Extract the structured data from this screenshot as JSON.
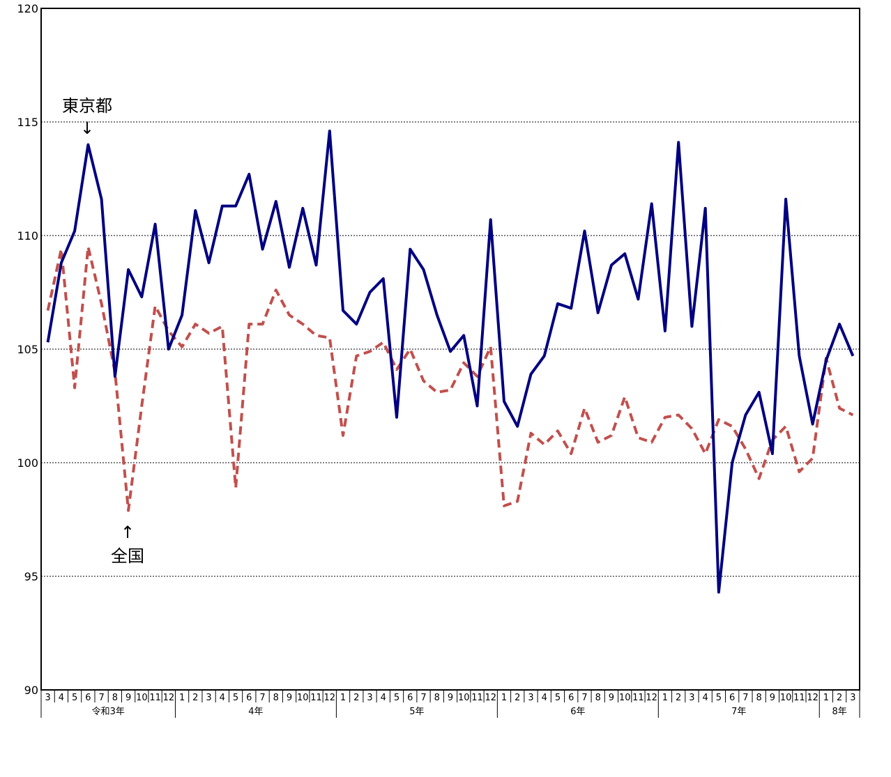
{
  "chart_data": {
    "type": "line",
    "title": "",
    "xlabel": "",
    "ylabel": "",
    "ylim": [
      90,
      120
    ],
    "yticks": [
      90,
      95,
      100,
      105,
      110,
      115,
      120
    ],
    "grid": "horizontal-dotted",
    "legend": "none",
    "x": [
      "3",
      "4",
      "5",
      "6",
      "7",
      "8",
      "9",
      "10",
      "11",
      "12",
      "1",
      "2",
      "3",
      "4",
      "5",
      "6",
      "7",
      "8",
      "9",
      "10",
      "11",
      "12",
      "1",
      "2",
      "3",
      "4",
      "5",
      "6",
      "7",
      "8",
      "9",
      "10",
      "11",
      "12",
      "1",
      "2",
      "3",
      "4",
      "5",
      "6",
      "7",
      "8",
      "9",
      "10",
      "11",
      "12",
      "1",
      "2",
      "3",
      "4",
      "5",
      "6",
      "7",
      "8",
      "9",
      "10",
      "11",
      "12",
      "1",
      "2",
      "3"
    ],
    "years": [
      {
        "label": "令和3年",
        "start": 0,
        "end": 9
      },
      {
        "label": "4年",
        "start": 10,
        "end": 21
      },
      {
        "label": "5年",
        "start": 22,
        "end": 33
      },
      {
        "label": "6年",
        "start": 34,
        "end": 45
      },
      {
        "label": "7年",
        "start": 46,
        "end": 57
      },
      {
        "label": "8年",
        "start": 58,
        "end": 60
      }
    ],
    "series": [
      {
        "name": "東京都",
        "color": "#000080",
        "dash": "solid",
        "values": [
          105.3,
          108.8,
          110.2,
          114.0,
          111.6,
          103.8,
          108.5,
          107.3,
          110.5,
          105.0,
          106.5,
          111.1,
          108.8,
          111.3,
          111.3,
          112.7,
          109.4,
          111.5,
          108.6,
          111.2,
          108.7,
          114.6,
          106.7,
          106.1,
          107.5,
          108.1,
          102.0,
          109.4,
          108.5,
          106.5,
          104.9,
          105.6,
          102.5,
          110.7,
          102.7,
          101.6,
          103.9,
          104.7,
          107.0,
          106.8,
          110.2,
          106.6,
          108.7,
          109.2,
          107.2,
          111.4,
          105.8,
          114.1,
          106.0,
          111.2,
          94.3,
          100.0,
          102.1,
          103.1,
          100.4,
          111.6,
          104.7,
          101.7,
          104.5,
          106.1,
          104.7
        ]
      },
      {
        "name": "全国",
        "color": "#C0504D",
        "dash": "dashed",
        "values": [
          106.7,
          109.4,
          103.3,
          109.5,
          107.0,
          104.0,
          97.9,
          102.5,
          106.9,
          105.8,
          105.1,
          106.1,
          105.7,
          106.0,
          98.9,
          106.1,
          106.1,
          107.6,
          106.5,
          106.1,
          105.6,
          105.5,
          101.2,
          104.7,
          104.9,
          105.3,
          104.1,
          105.0,
          103.6,
          103.1,
          103.2,
          104.4,
          103.8,
          105.1,
          98.1,
          98.3,
          101.3,
          100.8,
          101.4,
          100.4,
          102.4,
          100.9,
          101.2,
          102.9,
          101.1,
          100.9,
          102.0,
          102.1,
          101.5,
          100.4,
          101.9,
          101.6,
          100.6,
          99.3,
          101.0,
          101.6,
          99.6,
          100.2,
          104.6,
          102.4,
          102.1
        ]
      }
    ],
    "annotations": [
      {
        "text": "東京都",
        "arrow": "↓"
      },
      {
        "text": "全国",
        "arrow": "↑"
      }
    ]
  }
}
